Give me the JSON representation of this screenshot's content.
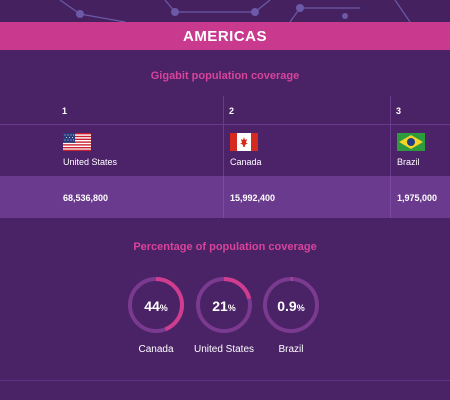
{
  "banner": {
    "title": "AMERICAS"
  },
  "gigabit": {
    "title": "Gigabit population coverage",
    "entries": [
      {
        "rank": "1",
        "country": "United States",
        "value": "68,536,800",
        "flag": "us-flag"
      },
      {
        "rank": "2",
        "country": "Canada",
        "value": "15,992,400",
        "flag": "canada-flag"
      },
      {
        "rank": "3",
        "country": "Brazil",
        "value": "1,975,000",
        "flag": "brazil-flag"
      }
    ]
  },
  "percentage": {
    "title": "Percentage of population coverage",
    "entries": [
      {
        "country": "Canada",
        "value": "44",
        "unit": "%",
        "fraction": 0.44
      },
      {
        "country": "United States",
        "value": "21",
        "unit": "%",
        "fraction": 0.21
      },
      {
        "country": "Brazil",
        "value": "0.9",
        "unit": "%",
        "fraction": 0.009
      }
    ]
  },
  "colors": {
    "background": "#4a2266",
    "accent": "#c93a8e",
    "ring_track": "#7a3a8f",
    "ring_fill": "#d13d8e"
  }
}
